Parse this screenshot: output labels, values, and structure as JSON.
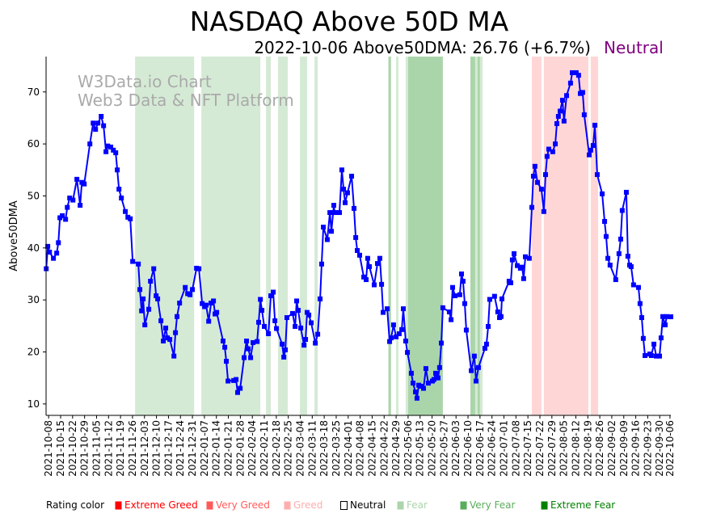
{
  "chart_data": {
    "type": "line",
    "title": "NASDAQ Above 50D MA",
    "subtitle": "2022-10-06 Above50DMA: 26.76 (+6.7%)",
    "rating": "Neutral",
    "rating_color": "#800080",
    "ylabel": "Above50DMA",
    "xlabel": "",
    "x_unit": "days since 2021-10-08",
    "x_origin": "2021-10-08",
    "xlim": [
      -1.5,
      363.5
    ],
    "ylim": [
      7.8,
      76.8
    ],
    "yticks": [
      10,
      20,
      30,
      40,
      50,
      60,
      70
    ],
    "grid": false,
    "line_color": "#0000ff",
    "watermark": [
      "W3Data.io Chart",
      "Web3 Data & NFT Platform"
    ],
    "xtick_labels": [
      "2021-10-08",
      "2021-10-15",
      "2021-10-22",
      "2021-10-29",
      "2021-11-05",
      "2021-11-12",
      "2021-11-19",
      "2021-11-26",
      "2021-12-03",
      "2021-12-10",
      "2021-12-17",
      "2021-12-24",
      "2021-12-31",
      "2022-01-07",
      "2022-01-14",
      "2022-01-21",
      "2022-01-28",
      "2022-02-04",
      "2022-02-11",
      "2022-02-18",
      "2022-02-25",
      "2022-03-04",
      "2022-03-11",
      "2022-03-18",
      "2022-03-25",
      "2022-04-01",
      "2022-04-08",
      "2022-04-15",
      "2022-04-22",
      "2022-04-29",
      "2022-05-06",
      "2022-05-13",
      "2022-05-20",
      "2022-05-27",
      "2022-06-03",
      "2022-06-10",
      "2022-06-17",
      "2022-06-24",
      "2022-07-01",
      "2022-07-08",
      "2022-07-15",
      "2022-07-22",
      "2022-07-29",
      "2022-08-05",
      "2022-08-12",
      "2022-08-19",
      "2022-08-26",
      "2022-09-02",
      "2022-09-09",
      "2022-09-16",
      "2022-09-23",
      "2022-09-30",
      "2022-10-06"
    ],
    "bands": [
      {
        "rating": "Fear",
        "from": 50.5,
        "to": 85.0
      },
      {
        "rating": "Fear",
        "from": 89.2,
        "to": 123.7
      },
      {
        "rating": "Fear",
        "from": 127.0,
        "to": 129.8
      },
      {
        "rating": "Fear",
        "from": 134.0,
        "to": 139.7
      },
      {
        "rating": "Fear",
        "from": 146.8,
        "to": 151.0
      },
      {
        "rating": "Fear",
        "from": 155.3,
        "to": 157.2
      },
      {
        "rating": "Very Fear",
        "from": 198.5,
        "to": 200.0
      },
      {
        "rating": "Fear",
        "from": 203.0,
        "to": 204.4
      },
      {
        "rating": "Fear",
        "from": 208.6,
        "to": 210.0
      },
      {
        "rating": "Very Fear",
        "from": 210.0,
        "to": 230.3
      },
      {
        "rating": "Very Fear",
        "from": 246.4,
        "to": 249.2
      },
      {
        "rating": "Fear",
        "from": 249.2,
        "to": 250.6
      },
      {
        "rating": "Very Fear",
        "from": 250.6,
        "to": 252.0
      },
      {
        "rating": "Fear",
        "from": 252.0,
        "to": 253.5
      },
      {
        "rating": "Greed",
        "from": 282.3,
        "to": 287.9
      },
      {
        "rating": "Greed",
        "from": 289.3,
        "to": 315.3
      },
      {
        "rating": "Greed",
        "from": 316.7,
        "to": 321.0
      }
    ],
    "points": [
      [
        -1.4,
        36
      ],
      [
        -0.5,
        40.3
      ],
      [
        0.5,
        39.2
      ],
      [
        2.8,
        38
      ],
      [
        4.7,
        39
      ],
      [
        5.7,
        41
      ],
      [
        6.6,
        45.8
      ],
      [
        8.0,
        46.2
      ],
      [
        9.9,
        45.5
      ],
      [
        10.9,
        47.8
      ],
      [
        12.3,
        49.6
      ],
      [
        14.2,
        49.2
      ],
      [
        16.5,
        53.2
      ],
      [
        18.4,
        48.2
      ],
      [
        19.4,
        52.6
      ],
      [
        20.8,
        52.3
      ],
      [
        24.1,
        60
      ],
      [
        26.0,
        64
      ],
      [
        27.4,
        62.8
      ],
      [
        28.8,
        64
      ],
      [
        30.7,
        65.3
      ],
      [
        32.1,
        63.5
      ],
      [
        33.5,
        58.5
      ],
      [
        34.5,
        59.6
      ],
      [
        36.3,
        59.4
      ],
      [
        37.8,
        58.8
      ],
      [
        39.2,
        58.3
      ],
      [
        40.1,
        55
      ],
      [
        41.1,
        51.3
      ],
      [
        42.5,
        49.6
      ],
      [
        44.8,
        47
      ],
      [
        46.3,
        45.9
      ],
      [
        47.7,
        45.6
      ],
      [
        49.1,
        37.4
      ],
      [
        52.4,
        36.9
      ],
      [
        53.3,
        32
      ],
      [
        54.3,
        27.9
      ],
      [
        55.2,
        30.2
      ],
      [
        56.2,
        25.2
      ],
      [
        58.5,
        28.2
      ],
      [
        59.5,
        33.6
      ],
      [
        61.4,
        36
      ],
      [
        62.8,
        30.8
      ],
      [
        63.7,
        30.2
      ],
      [
        65.6,
        26
      ],
      [
        67.0,
        22.1
      ],
      [
        68.4,
        24.6
      ],
      [
        69.4,
        22.7
      ],
      [
        70.8,
        22.4
      ],
      [
        73.2,
        19.2
      ],
      [
        74.1,
        23.7
      ],
      [
        75.0,
        26.8
      ],
      [
        76.5,
        29.4
      ],
      [
        79.8,
        32.4
      ],
      [
        81.2,
        31.2
      ],
      [
        82.6,
        31
      ],
      [
        84.0,
        32
      ],
      [
        86.4,
        36.1
      ],
      [
        87.8,
        36
      ],
      [
        89.7,
        29.3
      ],
      [
        91.1,
        28.7
      ],
      [
        92.0,
        29
      ],
      [
        93.5,
        25.9
      ],
      [
        94.9,
        29.4
      ],
      [
        96.3,
        29.8
      ],
      [
        97.2,
        27.3
      ],
      [
        98.2,
        27.6
      ],
      [
        101.9,
        22.1
      ],
      [
        102.9,
        20.9
      ],
      [
        103.8,
        18.2
      ],
      [
        104.8,
        14.4
      ],
      [
        108.1,
        14.5
      ],
      [
        109.5,
        14.7
      ],
      [
        110.4,
        12.2
      ],
      [
        111.9,
        13
      ],
      [
        114.2,
        18.9
      ],
      [
        115.6,
        22.1
      ],
      [
        116.6,
        20.6
      ],
      [
        118.0,
        18.9
      ],
      [
        119.4,
        21.8
      ],
      [
        121.8,
        22
      ],
      [
        122.7,
        25.7
      ],
      [
        123.7,
        30.1
      ],
      [
        124.6,
        28
      ],
      [
        126.0,
        24.9
      ],
      [
        128.4,
        23.5
      ],
      [
        129.8,
        30.8
      ],
      [
        131.2,
        31.5
      ],
      [
        132.2,
        26
      ],
      [
        133.1,
        24.5
      ],
      [
        136.4,
        21.5
      ],
      [
        137.4,
        19
      ],
      [
        138.3,
        20.4
      ],
      [
        139.2,
        26.6
      ],
      [
        142.5,
        27.4
      ],
      [
        144.0,
        24.9
      ],
      [
        144.9,
        29.8
      ],
      [
        145.8,
        28
      ],
      [
        147.3,
        24.6
      ],
      [
        149.2,
        21.3
      ],
      [
        150.1,
        22.4
      ],
      [
        151.0,
        27.6
      ],
      [
        152.0,
        27.1
      ],
      [
        153.4,
        25.6
      ],
      [
        155.8,
        21.7
      ],
      [
        157.2,
        23.4
      ],
      [
        158.6,
        30.2
      ],
      [
        159.5,
        36.9
      ],
      [
        160.5,
        44
      ],
      [
        162.8,
        41.6
      ],
      [
        164.3,
        46.8
      ],
      [
        165.2,
        43.2
      ],
      [
        166.6,
        48.2
      ],
      [
        167.1,
        46.8
      ],
      [
        169.9,
        46.8
      ],
      [
        171.3,
        55
      ],
      [
        172.3,
        51.3
      ],
      [
        173.2,
        48.7
      ],
      [
        174.6,
        50.6
      ],
      [
        177.0,
        53.8
      ],
      [
        178.4,
        47.6
      ],
      [
        179.4,
        42
      ],
      [
        180.3,
        39.5
      ],
      [
        181.7,
        38.6
      ],
      [
        184.1,
        34.4
      ],
      [
        185.5,
        33.9
      ],
      [
        186.4,
        38
      ],
      [
        187.4,
        36.4
      ],
      [
        190.2,
        32.9
      ],
      [
        192.1,
        37
      ],
      [
        193.5,
        38
      ],
      [
        194.5,
        33
      ],
      [
        195.4,
        27.6
      ],
      [
        197.8,
        28.3
      ],
      [
        199.2,
        22
      ],
      [
        200.1,
        22.7
      ],
      [
        201.5,
        25.2
      ],
      [
        203.0,
        22.9
      ],
      [
        204.8,
        23.5
      ],
      [
        206.3,
        24.3
      ],
      [
        207.2,
        28.3
      ],
      [
        208.6,
        22.1
      ],
      [
        209.6,
        19.9
      ],
      [
        211.9,
        15.9
      ],
      [
        212.9,
        14
      ],
      [
        214.3,
        12.3
      ],
      [
        215.2,
        11.1
      ],
      [
        216.2,
        13.6
      ],
      [
        217.6,
        13.4
      ],
      [
        219.0,
        13
      ],
      [
        220.4,
        16.8
      ],
      [
        221.8,
        14
      ],
      [
        224.2,
        14.4
      ],
      [
        225.1,
        14.7
      ],
      [
        226.1,
        15.9
      ],
      [
        227.5,
        15
      ],
      [
        228.4,
        17
      ],
      [
        229.4,
        21.7
      ],
      [
        230.3,
        28.5
      ],
      [
        234.1,
        27.7
      ],
      [
        235.1,
        26.2
      ],
      [
        236.0,
        32.4
      ],
      [
        237.4,
        30.8
      ],
      [
        240.2,
        31
      ],
      [
        241.2,
        35
      ],
      [
        242.1,
        33.6
      ],
      [
        243.1,
        29.3
      ],
      [
        244.0,
        24.2
      ],
      [
        246.9,
        16.4
      ],
      [
        248.7,
        19.2
      ],
      [
        249.7,
        14.4
      ],
      [
        251.1,
        17
      ],
      [
        254.9,
        20.7
      ],
      [
        255.8,
        21.5
      ],
      [
        256.8,
        24.9
      ],
      [
        257.7,
        30.1
      ],
      [
        260.5,
        30.7
      ],
      [
        262.4,
        27.7
      ],
      [
        263.4,
        26.6
      ],
      [
        264.3,
        26.8
      ],
      [
        264.8,
        30.2
      ],
      [
        269.0,
        33.6
      ],
      [
        270.0,
        33.3
      ],
      [
        270.9,
        37.7
      ],
      [
        271.9,
        38.9
      ],
      [
        273.8,
        36.6
      ],
      [
        275.6,
        36.1
      ],
      [
        276.6,
        36.3
      ],
      [
        277.5,
        34.1
      ],
      [
        278.5,
        38.3
      ],
      [
        280.8,
        38
      ],
      [
        282.3,
        47.8
      ],
      [
        283.2,
        53.8
      ],
      [
        284.1,
        55.7
      ],
      [
        285.6,
        52.6
      ],
      [
        287.9,
        51.3
      ],
      [
        289.3,
        47
      ],
      [
        290.3,
        54.1
      ],
      [
        291.2,
        57.6
      ],
      [
        292.2,
        59
      ],
      [
        294.5,
        58.5
      ],
      [
        296.0,
        60
      ],
      [
        296.9,
        63.9
      ],
      [
        297.8,
        65.3
      ],
      [
        298.8,
        66.3
      ],
      [
        300.2,
        68.4
      ],
      [
        301.1,
        64.4
      ],
      [
        302.6,
        69.3
      ],
      [
        304.9,
        71.7
      ],
      [
        305.9,
        73.7
      ],
      [
        308.2,
        73.7
      ],
      [
        309.6,
        73.2
      ],
      [
        310.6,
        69.7
      ],
      [
        312.0,
        69.9
      ],
      [
        312.9,
        65.6
      ],
      [
        315.8,
        57.9
      ],
      [
        316.7,
        58.8
      ],
      [
        318.1,
        59.7
      ],
      [
        319.1,
        63.6
      ],
      [
        320.5,
        54.1
      ],
      [
        323.4,
        50.4
      ],
      [
        324.8,
        45.1
      ],
      [
        325.7,
        42.2
      ],
      [
        326.7,
        38
      ],
      [
        328.0,
        36.7
      ],
      [
        331.3,
        33.9
      ],
      [
        333.2,
        38.9
      ],
      [
        334.2,
        41.7
      ],
      [
        335.1,
        47.2
      ],
      [
        337.5,
        50.7
      ],
      [
        338.4,
        38.4
      ],
      [
        339.4,
        36.7
      ],
      [
        340.3,
        36.4
      ],
      [
        341.7,
        32.9
      ],
      [
        344.6,
        32.4
      ],
      [
        345.5,
        29.3
      ],
      [
        346.5,
        26.6
      ],
      [
        347.4,
        22.6
      ],
      [
        348.4,
        19.3
      ],
      [
        351.2,
        19.6
      ],
      [
        352.1,
        19.3
      ],
      [
        353.6,
        21.5
      ],
      [
        355.0,
        19.2
      ],
      [
        356.9,
        19.2
      ],
      [
        357.8,
        22.7
      ],
      [
        358.8,
        26.8
      ],
      [
        360.2,
        25.2
      ],
      [
        361.1,
        26.8
      ],
      [
        363.5,
        26.76
      ]
    ],
    "legend": {
      "title": "Rating color",
      "items": [
        {
          "label": "Extreme Greed",
          "color": "#ff0000",
          "text_color": "#ff0000"
        },
        {
          "label": "Very Greed",
          "color": "#ff5a5a",
          "text_color": "#ff5a5a"
        },
        {
          "label": "Greed",
          "color": "#ffadad",
          "text_color": "#ffadad"
        },
        {
          "label": "Neutral",
          "color": "#ffffff",
          "text_color": "#000000"
        },
        {
          "label": "Fear",
          "color": "#add5ad",
          "text_color": "#add5ad"
        },
        {
          "label": "Very Fear",
          "color": "#5aad5a",
          "text_color": "#5aad5a"
        },
        {
          "label": "Extreme Fear",
          "color": "#008000",
          "text_color": "#008000"
        }
      ]
    },
    "band_colors": {
      "Greed": "#ffd6d6",
      "Fear": "#d5ead5",
      "Very Fear": "#aad5aa"
    }
  }
}
